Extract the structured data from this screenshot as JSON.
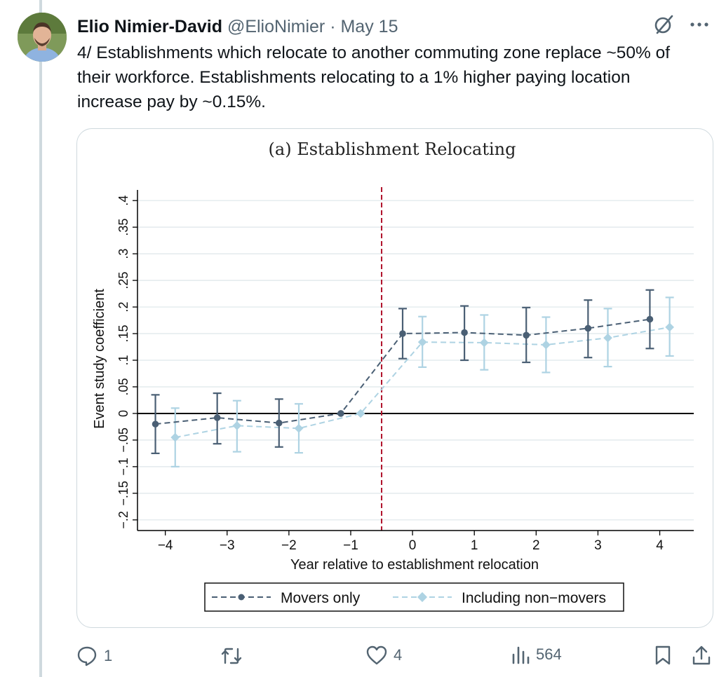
{
  "tweet": {
    "author_name": "Elio Nimier-David",
    "handle": "@ElioNimier",
    "separator": "·",
    "date": "May 15",
    "text": "4/ Establishments which relocate to another commuting zone replace ~50% of\ntheir workforce. Establishments relocating to a 1% higher paying location\nincrease pay by ~0.15%.",
    "icons": {
      "menu": "more-horizontal-icon",
      "grok": "grok-slash-icon"
    }
  },
  "actions": {
    "reply": {
      "icon": "reply-icon",
      "count": "1"
    },
    "repost": {
      "icon": "repost-icon",
      "count": ""
    },
    "like": {
      "icon": "like-icon",
      "count": "4"
    },
    "views": {
      "icon": "views-icon",
      "count": "564"
    },
    "bookmark": {
      "icon": "bookmark-icon"
    },
    "share": {
      "icon": "share-icon"
    }
  },
  "chart_data": {
    "type": "line",
    "title": "(a) Establishment Relocating",
    "xlabel": "Year relative to establishment relocation",
    "ylabel": "Event study coefficient",
    "x_ticks": [
      -4,
      -3,
      -2,
      -1,
      0,
      1,
      2,
      3,
      4
    ],
    "x_tick_labels": [
      "−4",
      "−3",
      "−2",
      "−1",
      "0",
      "1",
      "2",
      "3",
      "4"
    ],
    "y_ticks": [
      -0.2,
      -0.15,
      -0.1,
      -0.05,
      0,
      0.05,
      0.1,
      0.15,
      0.2,
      0.25,
      0.3,
      0.35,
      0.4
    ],
    "y_tick_labels": [
      "−.2",
      "−.15",
      "−.1",
      "−.05",
      "0",
      ".05",
      ".1",
      ".15",
      ".2",
      ".25",
      ".3",
      ".35",
      ".4"
    ],
    "xlim": [
      -4.45,
      4.55
    ],
    "ylim": [
      -0.22,
      0.42
    ],
    "event_line_x": -0.5,
    "grid": true,
    "legend_position": "bottom",
    "series": [
      {
        "name": "Movers only",
        "color": "#4a5f74",
        "x": [
          -4.16,
          -3.16,
          -2.16,
          -1.16,
          -0.16,
          0.84,
          1.84,
          2.84,
          3.84
        ],
        "y": [
          -0.02,
          -0.008,
          -0.018,
          0.0,
          0.15,
          0.152,
          0.147,
          0.16,
          0.177
        ],
        "ci_low": [
          -0.075,
          -0.057,
          -0.063,
          0.0,
          0.103,
          0.1,
          0.096,
          0.105,
          0.122
        ],
        "ci_high": [
          0.035,
          0.038,
          0.027,
          0.0,
          0.197,
          0.202,
          0.199,
          0.213,
          0.232
        ]
      },
      {
        "name": "Including non−movers",
        "color": "#aed3e3",
        "x": [
          -3.84,
          -2.84,
          -1.84,
          -0.84,
          0.16,
          1.16,
          2.16,
          3.16,
          4.16
        ],
        "y": [
          -0.045,
          -0.023,
          -0.028,
          0.0,
          0.134,
          0.133,
          0.129,
          0.142,
          0.162
        ],
        "ci_low": [
          -0.1,
          -0.072,
          -0.074,
          0.0,
          0.087,
          0.082,
          0.077,
          0.088,
          0.108
        ],
        "ci_high": [
          0.01,
          0.024,
          0.018,
          0.0,
          0.182,
          0.185,
          0.181,
          0.197,
          0.218
        ]
      }
    ]
  }
}
